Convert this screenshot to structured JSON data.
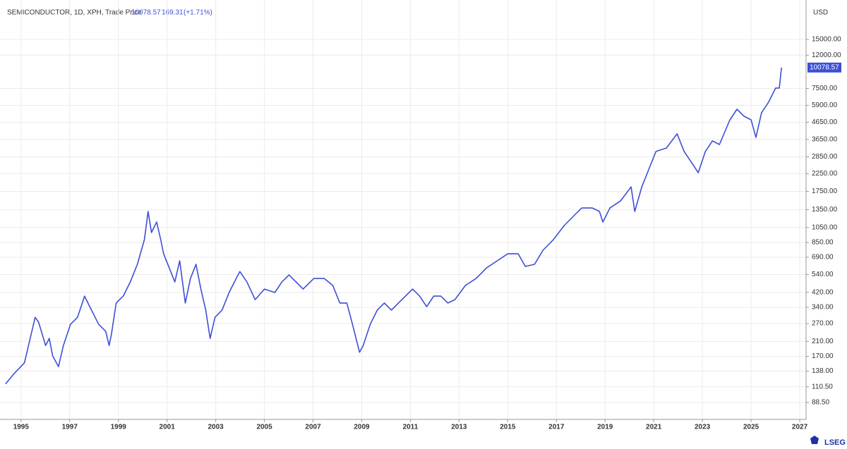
{
  "chart_data": {
    "type": "line",
    "title": "SEMICONDUCTOR, 1D, XPH, Trade Price",
    "last_price": 10078.57,
    "change": 169.31,
    "change_pct": "(+1.71%)",
    "y_unit": "USD",
    "brand": "LSEG",
    "color": "#3d4fd6",
    "log_scale": true,
    "grid": true,
    "x": [
      1994.36,
      1994.71,
      1995.14,
      1995.58,
      1995.72,
      1996.01,
      1996.16,
      1996.3,
      1996.54,
      1996.74,
      1997.03,
      1997.32,
      1997.61,
      1997.75,
      1998.19,
      1998.48,
      1998.62,
      1998.71,
      1998.91,
      1999.2,
      1999.49,
      1999.78,
      2000.07,
      2000.22,
      2000.36,
      2000.57,
      2000.74,
      2000.86,
      2001.09,
      2001.32,
      2001.52,
      2001.75,
      2001.96,
      2002.19,
      2002.39,
      2002.59,
      2002.77,
      2002.97,
      2003.26,
      2003.55,
      2003.84,
      2003.99,
      2004.28,
      2004.62,
      2005.0,
      2005.43,
      2005.72,
      2006.01,
      2006.3,
      2006.59,
      2007.03,
      2007.46,
      2007.81,
      2008.1,
      2008.39,
      2008.62,
      2008.91,
      2009.06,
      2009.35,
      2009.64,
      2009.93,
      2010.22,
      2010.51,
      2010.8,
      2011.09,
      2011.38,
      2011.67,
      2011.96,
      2012.25,
      2012.54,
      2012.83,
      2013.26,
      2013.7,
      2014.13,
      2014.57,
      2015.0,
      2015.43,
      2015.72,
      2016.1,
      2016.45,
      2016.88,
      2017.32,
      2017.75,
      2018.04,
      2018.48,
      2018.77,
      2018.91,
      2019.2,
      2019.64,
      2020.07,
      2020.22,
      2020.51,
      2020.8,
      2021.09,
      2021.52,
      2021.96,
      2022.25,
      2022.54,
      2022.83,
      2023.12,
      2023.41,
      2023.7,
      2024.13,
      2024.42,
      2024.71,
      2025.0,
      2025.2,
      2025.43,
      2025.72,
      2026.01,
      2026.16,
      2026.25
    ],
    "values": [
      115,
      133,
      155,
      295,
      276,
      198,
      219,
      171,
      147,
      198,
      267,
      295,
      398,
      361,
      267,
      242,
      198,
      230,
      361,
      398,
      487,
      624,
      885,
      1318,
      978,
      1135,
      885,
      724,
      593,
      487,
      656,
      361,
      511,
      624,
      440,
      327,
      219,
      295,
      327,
      419,
      511,
      564,
      487,
      379,
      440,
      419,
      487,
      537,
      487,
      440,
      511,
      511,
      463,
      361,
      361,
      267,
      180,
      198,
      267,
      327,
      361,
      327,
      361,
      398,
      440,
      398,
      343,
      398,
      398,
      361,
      379,
      463,
      511,
      593,
      656,
      724,
      724,
      606,
      624,
      762,
      885,
      1080,
      1254,
      1384,
      1384,
      1318,
      1135,
      1384,
      1532,
      1866,
      1318,
      1866,
      2396,
      3076,
      3232,
      3945,
      3076,
      2649,
      2280,
      3076,
      3571,
      3396,
      4812,
      5589,
      5062,
      4812,
      3751,
      5323,
      6180,
      7540,
      7540,
      10078.57
    ],
    "xlim": [
      1994.28,
      2027.26
    ],
    "xticks": [
      1995,
      1997,
      1999,
      2001,
      2003,
      2005,
      2007,
      2009,
      2011,
      2013,
      2015,
      2017,
      2019,
      2021,
      2023,
      2025,
      2027
    ],
    "ylim": [
      69.7,
      23700
    ],
    "yticks": [
      {
        "value": 88.5,
        "label": "88.50"
      },
      {
        "value": 110.5,
        "label": "110.50"
      },
      {
        "value": 138,
        "label": "138.00"
      },
      {
        "value": 170,
        "label": "170.00"
      },
      {
        "value": 210,
        "label": "210.00"
      },
      {
        "value": 270,
        "label": "270.00"
      },
      {
        "value": 340,
        "label": "340.00"
      },
      {
        "value": 420,
        "label": "420.00"
      },
      {
        "value": 540,
        "label": "540.00"
      },
      {
        "value": 690,
        "label": "690.00"
      },
      {
        "value": 850,
        "label": "850.00"
      },
      {
        "value": 1050,
        "label": "1050.00"
      },
      {
        "value": 1350,
        "label": "1350.00"
      },
      {
        "value": 1750,
        "label": "1750.00"
      },
      {
        "value": 2250,
        "label": "2250.00"
      },
      {
        "value": 2850,
        "label": "2850.00"
      },
      {
        "value": 3650,
        "label": "3650.00"
      },
      {
        "value": 4650,
        "label": "4650.00"
      },
      {
        "value": 5900,
        "label": "5900.00"
      },
      {
        "value": 7500,
        "label": "7500.00"
      },
      {
        "value": 12000,
        "label": "12000.00"
      },
      {
        "value": 15000,
        "label": "15000.00"
      }
    ]
  }
}
